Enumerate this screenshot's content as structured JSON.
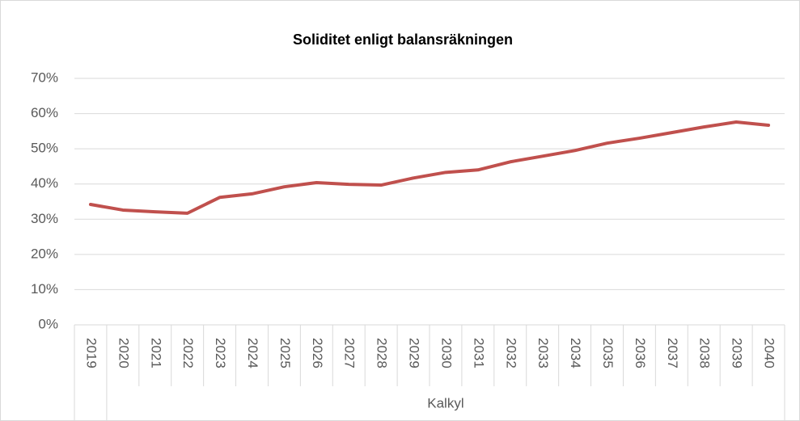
{
  "chart_data": {
    "type": "line",
    "title": "Soliditet enligt balansräkningen",
    "categories": [
      "2019",
      "2020",
      "2021",
      "2022",
      "2023",
      "2024",
      "2025",
      "2026",
      "2027",
      "2028",
      "2029",
      "2030",
      "2031",
      "2032",
      "2033",
      "2034",
      "2035",
      "2036",
      "2037",
      "2038",
      "2039",
      "2040"
    ],
    "groups": [
      {
        "label": "Kalkyl",
        "first": 1,
        "last": 21
      }
    ],
    "series": [
      {
        "color": "#c0504d",
        "values": [
          34.2,
          32.6,
          32.1,
          31.7,
          36.2,
          37.2,
          39.2,
          40.4,
          39.9,
          39.7,
          41.7,
          43.3,
          44.0,
          46.3,
          47.9,
          49.5,
          51.6,
          53.0,
          54.6,
          56.2,
          57.6,
          56.7
        ]
      }
    ],
    "ylim": [
      0,
      70
    ],
    "yticks": [
      {
        "value": 0,
        "label": "0%"
      },
      {
        "value": 10,
        "label": "10%"
      },
      {
        "value": 20,
        "label": "20%"
      },
      {
        "value": 30,
        "label": "30%"
      },
      {
        "value": 40,
        "label": "40%"
      },
      {
        "value": 50,
        "label": "50%"
      },
      {
        "value": 60,
        "label": "60%"
      },
      {
        "value": 70,
        "label": "70%"
      }
    ],
    "grid": true
  }
}
